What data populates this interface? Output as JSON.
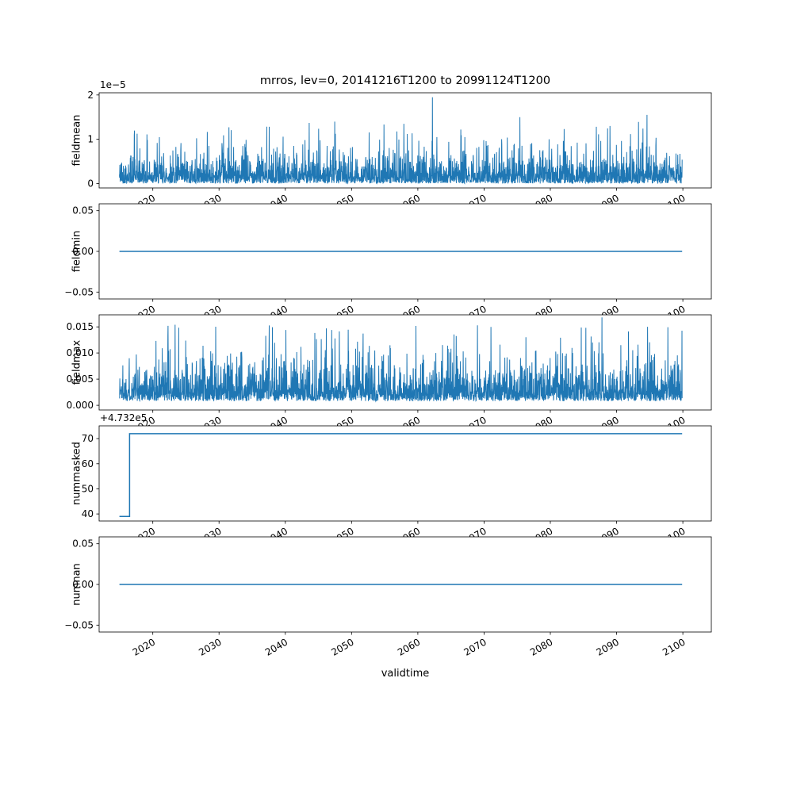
{
  "figure": {
    "title": "mrros, lev=0, 20141216T1200 to 20991124T1200",
    "xlabel": "validtime",
    "line_color": "#1f77b4",
    "background": "#ffffff",
    "x_ticks": [
      2020,
      2030,
      2040,
      2050,
      2060,
      2070,
      2080,
      2090,
      2100
    ],
    "x_tick_rotation": 30,
    "xlim": [
      2011.9,
      2104.3
    ],
    "x_data_range": [
      2014.96,
      2099.9
    ]
  },
  "chart_data": [
    {
      "name": "fieldmean",
      "type": "line",
      "ylabel": "fieldmean",
      "offset_text": "1e−5",
      "description": "Dense noisy spiky series between 0 and 2e-5, largest spike ~1.95e-5 near 2062",
      "ylim": [
        -1e-06,
        2.05e-05
      ],
      "yticks": [
        0,
        1e-05,
        2e-05
      ],
      "ytick_labels": [
        "0",
        "1",
        "2"
      ],
      "series": {
        "kind": "noise",
        "seed": 42,
        "n": 2800,
        "base": 0,
        "scale": 2.2e-06,
        "clip": 1.45e-05,
        "spikes": [
          [
            2017.2,
            1.1e-05
          ],
          [
            2031.5,
            1.27e-05
          ],
          [
            2043.6,
            1.37e-05
          ],
          [
            2057.9,
            1.35e-05
          ],
          [
            2062.2,
            1.95e-05
          ],
          [
            2066.5,
            1.22e-05
          ],
          [
            2075.4,
            1.5e-05
          ],
          [
            2089.0,
            1.3e-05
          ],
          [
            2094.6,
            1.55e-05
          ]
        ]
      }
    },
    {
      "name": "fieldmin",
      "type": "line",
      "ylabel": "fieldmin",
      "offset_text": "",
      "description": "Constant zero line across full time range",
      "ylim": [
        -0.0585,
        0.0585
      ],
      "yticks": [
        -0.05,
        0,
        0.05
      ],
      "ytick_labels": [
        "−0.05",
        "0.00",
        "0.05"
      ],
      "series": {
        "kind": "constant",
        "value": 0
      }
    },
    {
      "name": "fieldmax",
      "type": "line",
      "ylabel": "fieldmax",
      "offset_text": "",
      "description": "Dense noisy series between ~0.001 and 0.015, largest spike ~0.0168 near 2088",
      "ylim": [
        -0.0009,
        0.0173
      ],
      "yticks": [
        0,
        0.005,
        0.01,
        0.015
      ],
      "ytick_labels": [
        "0.000",
        "0.005",
        "0.010",
        "0.015"
      ],
      "series": {
        "kind": "noise",
        "seed": 1337,
        "n": 2800,
        "base": 0.0008,
        "scale": 0.0026,
        "clip": 0.0155,
        "spikes": [
          [
            2022.3,
            0.0152
          ],
          [
            2040.1,
            0.0144
          ],
          [
            2046.2,
            0.0147
          ],
          [
            2069.0,
            0.0153
          ],
          [
            2087.8,
            0.0168
          ]
        ]
      }
    },
    {
      "name": "nummasked",
      "type": "line",
      "ylabel": "nummasked",
      "offset_text": "+4.732e5",
      "description": "Steps up from 473239 to 473272 shortly after start, then constant",
      "ylim": [
        473237.2,
        473275.1
      ],
      "yticks": [
        473240,
        473250,
        473260,
        473270
      ],
      "ytick_labels": [
        "40",
        "50",
        "60",
        "70"
      ],
      "series": {
        "kind": "step",
        "before": 473239,
        "after": 473272,
        "step_x": 2016.5
      }
    },
    {
      "name": "numnan",
      "type": "line",
      "ylabel": "numnan",
      "offset_text": "",
      "description": "Constant zero line across full time range",
      "ylim": [
        -0.0585,
        0.0585
      ],
      "yticks": [
        -0.05,
        0,
        0.05
      ],
      "ytick_labels": [
        "−0.05",
        "0.00",
        "0.05"
      ],
      "series": {
        "kind": "constant",
        "value": 0
      }
    }
  ]
}
